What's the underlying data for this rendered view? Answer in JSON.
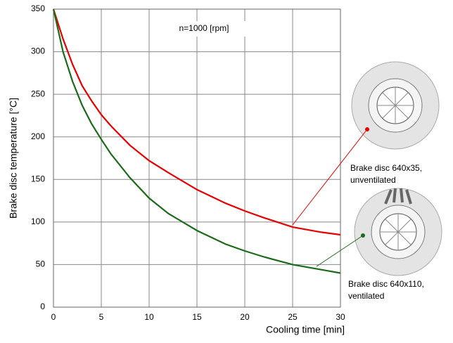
{
  "chart_data": {
    "type": "line",
    "annotation": "n=1000 [rpm]",
    "xlabel": "Cooling time [min]",
    "ylabel": "Brake disc temperature [°C]",
    "x": [
      0,
      1,
      2,
      3,
      4,
      5,
      6,
      8,
      10,
      12,
      15,
      18,
      20,
      22,
      25,
      28,
      30
    ],
    "series": [
      {
        "label": [
          "Brake disc 640x35,",
          "unventilated"
        ],
        "color": "#e60000",
        "values": [
          350,
          315,
          285,
          260,
          242,
          226,
          213,
          190,
          172,
          158,
          138,
          122,
          113,
          105,
          94,
          88,
          85
        ]
      },
      {
        "label": [
          "Brake disc 640x110,",
          "ventilated"
        ],
        "color": "#1a6b1a",
        "values": [
          350,
          300,
          265,
          237,
          215,
          197,
          180,
          152,
          128,
          110,
          90,
          74,
          66,
          59,
          50,
          44,
          40
        ]
      }
    ],
    "xlim": [
      0,
      30
    ],
    "xticks": [
      0,
      5,
      10,
      15,
      20,
      25,
      30
    ],
    "ylim": [
      0,
      350
    ],
    "yticks": [
      0,
      50,
      100,
      150,
      200,
      250,
      300,
      350
    ],
    "grid": true
  }
}
